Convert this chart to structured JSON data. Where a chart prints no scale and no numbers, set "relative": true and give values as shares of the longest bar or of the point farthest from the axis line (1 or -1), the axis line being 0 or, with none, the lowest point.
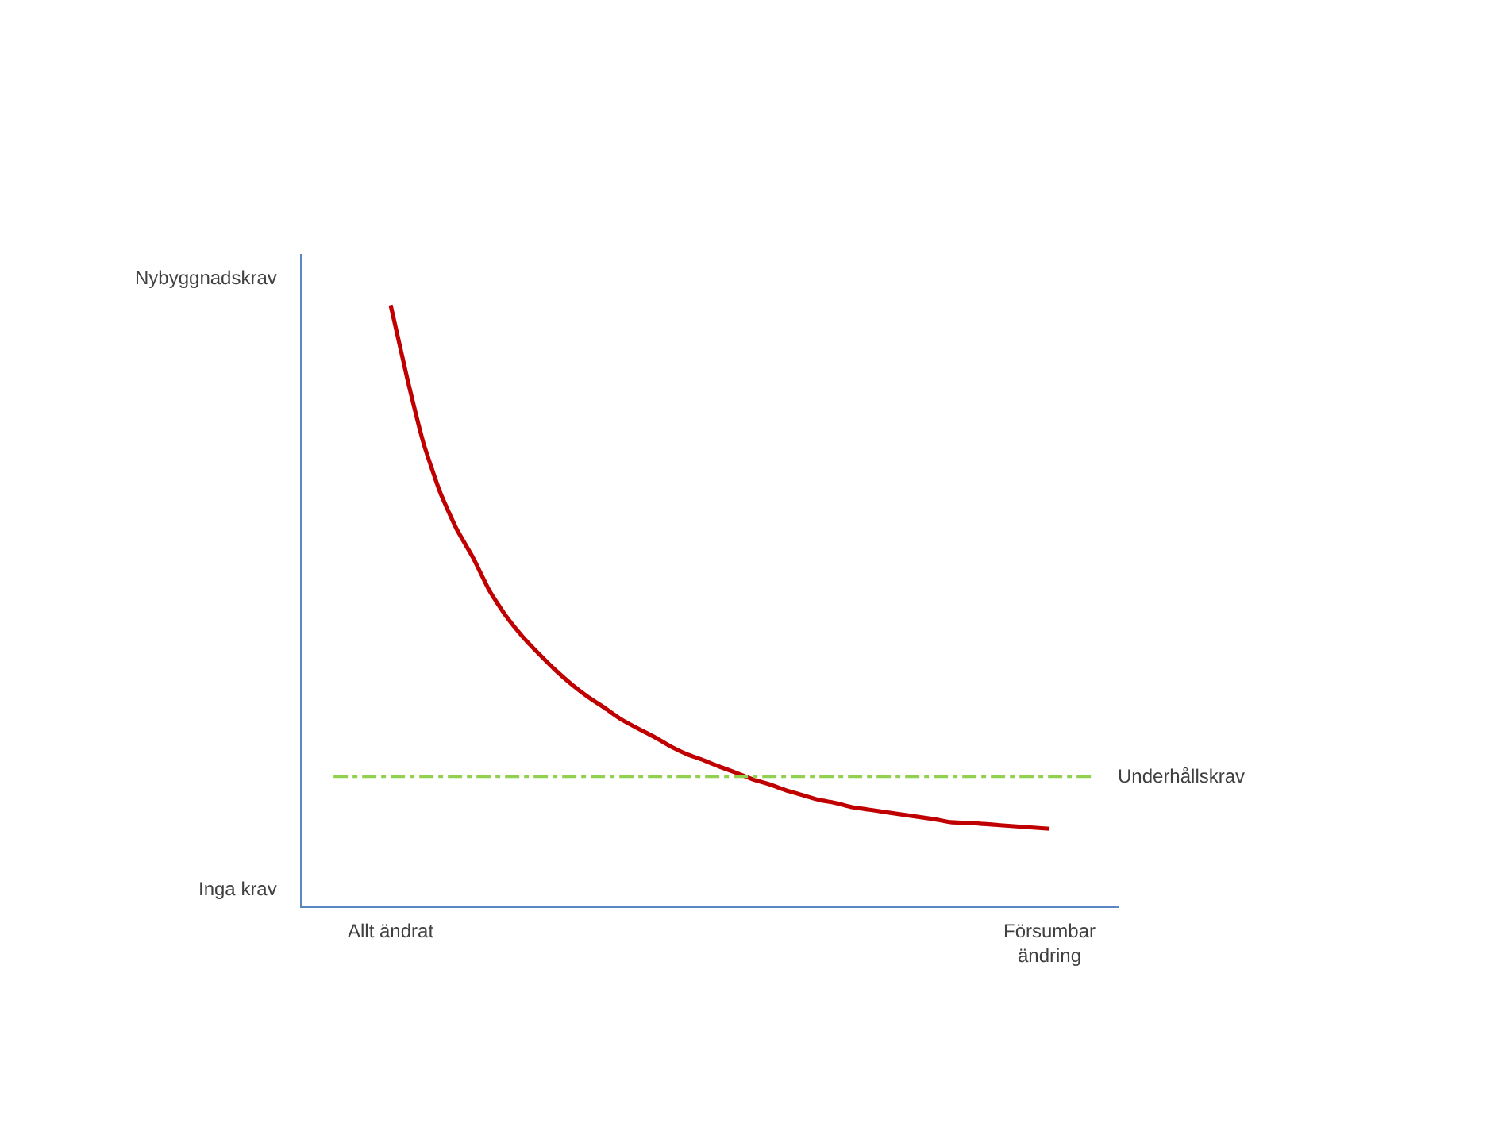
{
  "chart_data": {
    "type": "line",
    "relative": true,
    "categories": [
      "Allt ändrat",
      null,
      null,
      null,
      null,
      null,
      null,
      null,
      null,
      null,
      null,
      null,
      null,
      null,
      null,
      null,
      null,
      null,
      null,
      null,
      null,
      null,
      null,
      null,
      null,
      null,
      null,
      null,
      null,
      null,
      null,
      null,
      null,
      null,
      null,
      null,
      null,
      null,
      null,
      null,
      "Försumbar ändring"
    ],
    "series": [
      {
        "color": "#c00000",
        "values": [
          1,
          0.879,
          0.77,
          0.689,
          0.628,
          0.58,
          0.525,
          0.483,
          0.449,
          0.42,
          0.393,
          0.369,
          0.348,
          0.33,
          0.311,
          0.296,
          0.282,
          0.266,
          0.253,
          0.243,
          0.232,
          0.222,
          0.211,
          0.203,
          0.193,
          0.185,
          0.177,
          0.172,
          0.165,
          0.161,
          0.157,
          0.153,
          0.149,
          0.145,
          0.14,
          0.139,
          0.137,
          0.135,
          0.133,
          0.131,
          0.129
        ]
      }
    ],
    "marker": "none",
    "ref_lines": [
      {
        "axis": "y",
        "value": 0.216,
        "label": "Underhållskrav",
        "color": "#92d050",
        "line_style": "dashdot"
      }
    ],
    "annotations": [
      "Nybyggnadskrav",
      "Inga krav"
    ]
  }
}
